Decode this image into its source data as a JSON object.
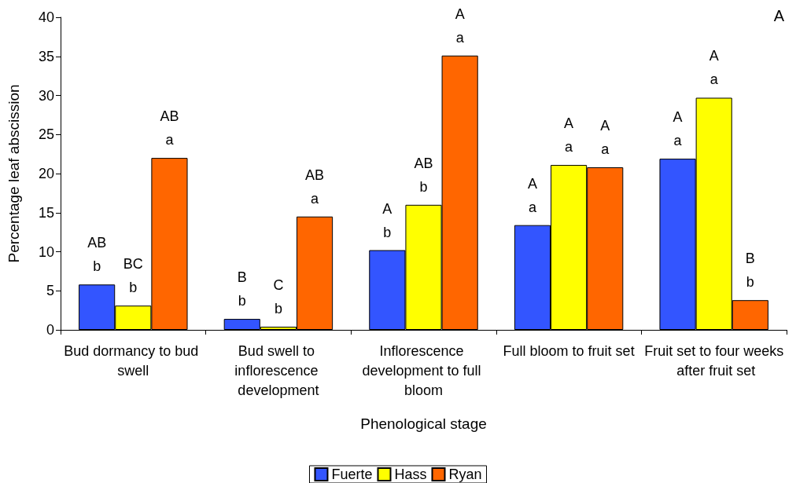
{
  "chart_data": {
    "type": "bar",
    "xlabel": "Phenological stage",
    "ylabel": "Percentage leaf abscission",
    "categories": [
      "Bud dormancy to bud swell",
      "Bud swell to inflorescence development",
      "Inflorescence development to full bloom",
      "Full bloom to fruit set",
      "Fruit set to four weeks after fruit set"
    ],
    "series": [
      {
        "name": "Fuerte",
        "color": "#3355ff",
        "values": [
          5.8,
          1.4,
          10.2,
          13.4,
          21.9
        ],
        "value_labels": [
          "AB\nb",
          "B\nb",
          "A\nb",
          "A\na",
          "A\na"
        ]
      },
      {
        "name": "Hass",
        "color": "#ffff00",
        "values": [
          3.1,
          0.4,
          16.0,
          21.1,
          29.7
        ],
        "value_labels": [
          "BC\nb",
          "C\nb",
          "AB\nb",
          "A\na",
          "A\na"
        ]
      },
      {
        "name": "Ryan",
        "color": "#ff6600",
        "values": [
          22.0,
          14.5,
          35.1,
          20.8,
          3.8
        ],
        "value_labels": [
          "AB\na",
          "AB\na",
          "A\na",
          "A\na",
          "B\nb"
        ]
      }
    ],
    "ylim": [
      0,
      40
    ],
    "yticks": [
      0,
      5,
      10,
      15,
      20,
      25,
      30,
      35,
      40
    ],
    "grid": false,
    "legend": "bottom",
    "annotations": [
      "A"
    ]
  }
}
